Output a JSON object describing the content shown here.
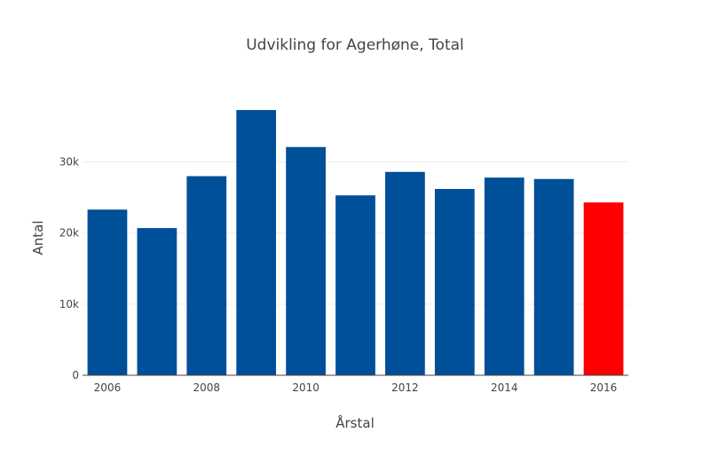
{
  "chart_data": {
    "type": "bar",
    "title": "Udvikling for Agerhøne, Total",
    "xlabel": "Årstal",
    "ylabel": "Antal",
    "categories": [
      "2006",
      "2007",
      "2008",
      "2009",
      "2010",
      "2011",
      "2012",
      "2013",
      "2014",
      "2015",
      "2016"
    ],
    "values": [
      23300,
      20700,
      28000,
      37300,
      32100,
      25300,
      28600,
      26200,
      27800,
      27600,
      24300
    ],
    "bar_colors": [
      "#004f99",
      "#004f99",
      "#004f99",
      "#004f99",
      "#004f99",
      "#004f99",
      "#004f99",
      "#004f99",
      "#004f99",
      "#004f99",
      "#ff0000"
    ],
    "ylim": [
      0,
      39300
    ],
    "yticks": [
      0,
      10000,
      20000,
      30000
    ],
    "ytick_labels": [
      "0",
      "10k",
      "20k",
      "30k"
    ],
    "xticks": [
      "2006",
      "2008",
      "2010",
      "2012",
      "2014",
      "2016"
    ],
    "grid": true,
    "legend": "none"
  }
}
